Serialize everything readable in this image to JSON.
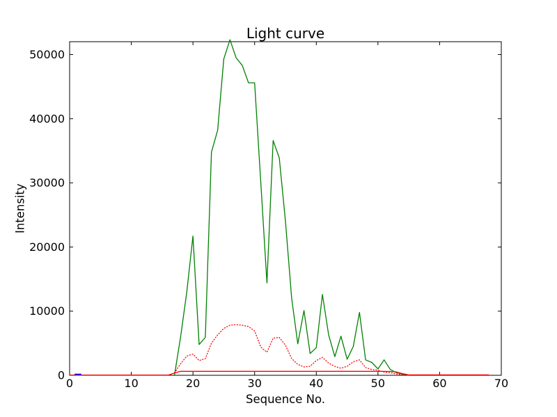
{
  "figure": {
    "title": "Light curve",
    "xlabel": "Sequence No.",
    "ylabel": "Intensity"
  },
  "chart_data": {
    "type": "line",
    "title": "Light curve",
    "xlabel": "Sequence No.",
    "ylabel": "Intensity",
    "xlim": [
      0,
      70
    ],
    "ylim": [
      0,
      52000
    ],
    "xticks": [
      0,
      10,
      20,
      30,
      40,
      50,
      60,
      70
    ],
    "yticks": [
      0,
      10000,
      20000,
      30000,
      40000,
      50000
    ],
    "grid": false,
    "legend": null,
    "tick_direction": "in",
    "background": "#ffffff",
    "axes_color": "#000000",
    "series": [
      {
        "name": "green_solid",
        "color": "#008000",
        "linestyle": "solid",
        "linewidth": 1.3,
        "points": [
          [
            17,
            0
          ],
          [
            18,
            6000
          ],
          [
            19,
            13000
          ],
          [
            20,
            21700
          ],
          [
            21,
            4800
          ],
          [
            22,
            5900
          ],
          [
            23,
            34800
          ],
          [
            24,
            38200
          ],
          [
            25,
            49300
          ],
          [
            26,
            52300
          ],
          [
            27,
            49500
          ],
          [
            28,
            48300
          ],
          [
            29,
            45600
          ],
          [
            30,
            45600
          ],
          [
            31,
            30000
          ],
          [
            32,
            14400
          ],
          [
            33,
            36600
          ],
          [
            34,
            33900
          ],
          [
            35,
            24000
          ],
          [
            36,
            12000
          ],
          [
            37,
            4900
          ],
          [
            38,
            10100
          ],
          [
            39,
            3400
          ],
          [
            40,
            4300
          ],
          [
            41,
            12600
          ],
          [
            42,
            6300
          ],
          [
            43,
            2900
          ],
          [
            44,
            6100
          ],
          [
            45,
            2500
          ],
          [
            46,
            4500
          ],
          [
            47,
            9800
          ],
          [
            48,
            2400
          ],
          [
            49,
            2000
          ],
          [
            50,
            1000
          ],
          [
            51,
            2400
          ],
          [
            52,
            900
          ],
          [
            53,
            400
          ],
          [
            54,
            200
          ],
          [
            55,
            0
          ]
        ]
      },
      {
        "name": "red_dotted",
        "color": "#ff0000",
        "linestyle": "dotted",
        "linewidth": 1.3,
        "points": [
          [
            17,
            400
          ],
          [
            18,
            1800
          ],
          [
            19,
            3000
          ],
          [
            20,
            3300
          ],
          [
            21,
            2300
          ],
          [
            22,
            2600
          ],
          [
            23,
            5000
          ],
          [
            24,
            6300
          ],
          [
            25,
            7300
          ],
          [
            26,
            7800
          ],
          [
            27,
            7900
          ],
          [
            28,
            7800
          ],
          [
            29,
            7600
          ],
          [
            30,
            6900
          ],
          [
            31,
            4400
          ],
          [
            32,
            3600
          ],
          [
            33,
            5800
          ],
          [
            34,
            5900
          ],
          [
            35,
            4700
          ],
          [
            36,
            2600
          ],
          [
            37,
            1700
          ],
          [
            38,
            1300
          ],
          [
            39,
            1400
          ],
          [
            40,
            2300
          ],
          [
            41,
            2800
          ],
          [
            42,
            1900
          ],
          [
            43,
            1400
          ],
          [
            44,
            1100
          ],
          [
            45,
            1400
          ],
          [
            46,
            2100
          ],
          [
            47,
            2400
          ],
          [
            48,
            1200
          ],
          [
            49,
            900
          ],
          [
            50,
            800
          ],
          [
            51,
            500
          ],
          [
            52,
            400
          ],
          [
            53,
            200
          ],
          [
            54,
            100
          ]
        ]
      },
      {
        "name": "red_solid",
        "color": "#ff0000",
        "linestyle": "solid",
        "linewidth": 1.3,
        "points": [
          [
            0,
            30
          ],
          [
            16,
            30
          ],
          [
            17,
            350
          ],
          [
            18,
            620
          ],
          [
            50,
            620
          ],
          [
            52,
            600
          ],
          [
            53,
            520
          ],
          [
            54,
            260
          ],
          [
            55,
            60
          ],
          [
            68,
            60
          ]
        ]
      },
      {
        "name": "blue_solid",
        "color": "#0000ff",
        "linestyle": "solid",
        "linewidth": 1.8,
        "points": [
          [
            0.8,
            150
          ],
          [
            1.9,
            150
          ]
        ]
      }
    ]
  }
}
